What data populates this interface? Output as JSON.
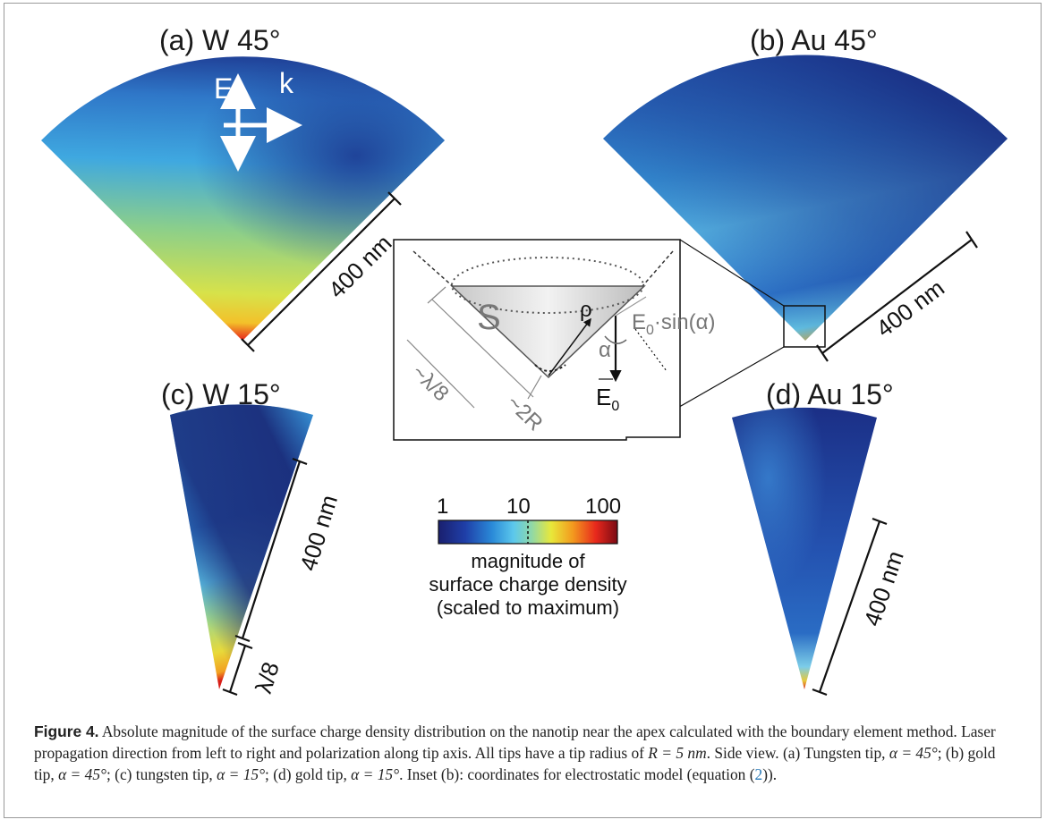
{
  "panels": {
    "a": {
      "title": "(a) W 45°",
      "scale": "400 nm"
    },
    "b": {
      "title": "(b) Au 45°",
      "scale": "400 nm"
    },
    "c": {
      "title": "(c) W 15°",
      "scale": "400 nm",
      "scale2": "λ/8"
    },
    "d": {
      "title": "(d) Au 15°",
      "scale": "400 nm"
    }
  },
  "arrows": {
    "e_label": "E",
    "k_label": "k"
  },
  "inset": {
    "surface": "S",
    "rho": "ρ",
    "alpha": "α",
    "field_component_main": "E",
    "field_component_sub": "0",
    "field_component_rest": "·sin(α)",
    "field_main": "E",
    "field_sub": "0",
    "radius": "~2R",
    "wavelength": "~λ/8"
  },
  "colorbar": {
    "ticks": [
      "1",
      "10",
      "100"
    ],
    "label_lines": [
      "magnitude of",
      "surface charge density",
      "(scaled to maximum)"
    ],
    "colors": [
      "#1a1f6e",
      "#1f3fa8",
      "#2a8ad8",
      "#5cc8ec",
      "#8fd8a8",
      "#e8e83a",
      "#f39a1e",
      "#e8281c",
      "#7a0a14"
    ]
  },
  "caption": {
    "figure_label": "Figure 4.",
    "text_1": " Absolute magnitude of the surface charge density distribution on the nanotip near the apex calculated with the boundary element method. Laser propagation direction from left to right and polarization along tip axis. All tips have a tip radius of ",
    "math_r": "R = 5 nm",
    "text_2": ". Side view. (a) Tungsten tip, ",
    "math_a": "α = 45°",
    "text_3": "; (b) gold tip, ",
    "math_b": "α = 45°",
    "text_4": "; (c) tungsten tip, ",
    "math_c": "α = 15°",
    "text_5": "; (d) gold tip, ",
    "math_d": "α = 15°",
    "text_6": ". Inset (b): coordinates for electrostatic model (equation (",
    "eq_ref": "2",
    "text_7": "))."
  }
}
